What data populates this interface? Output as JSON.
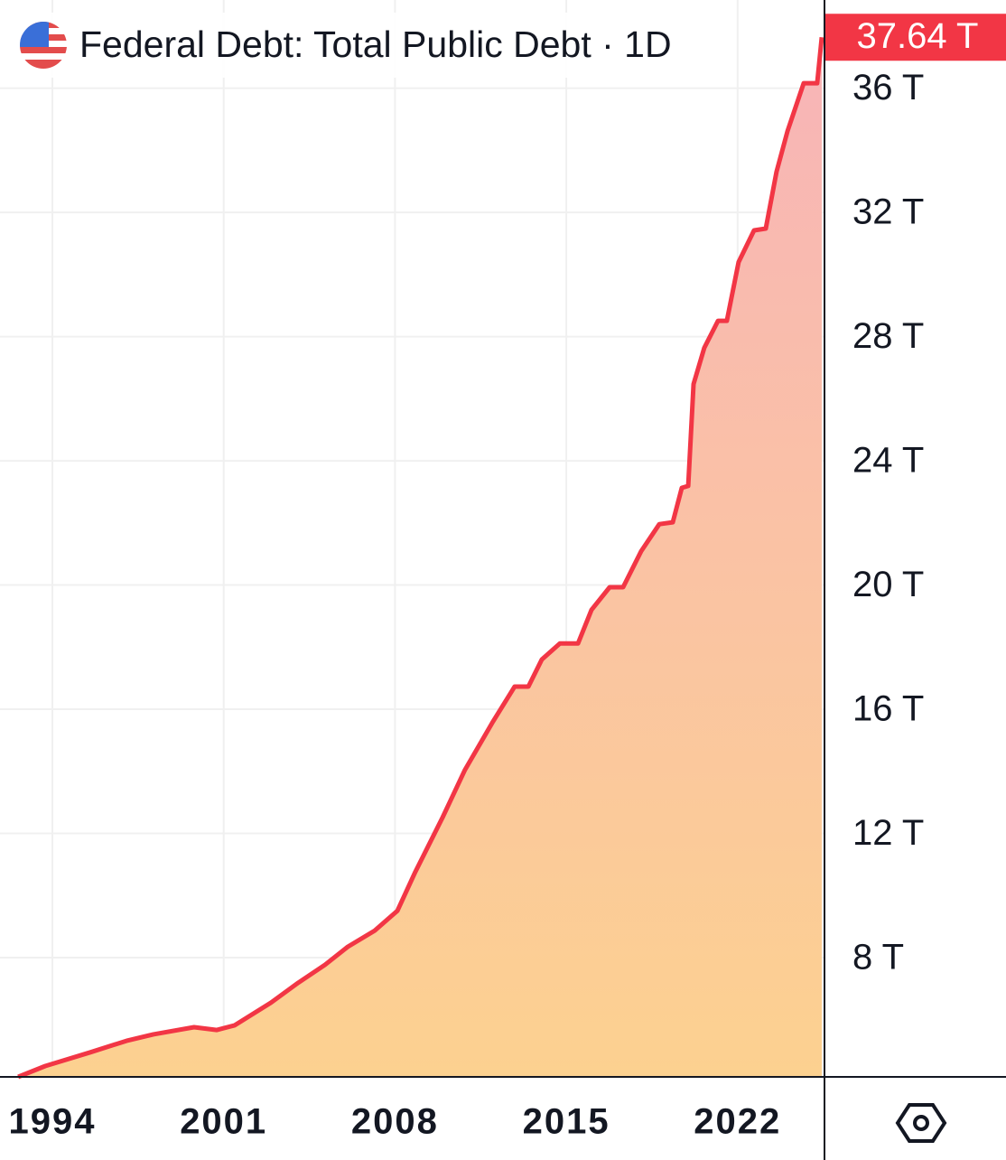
{
  "chart_data": {
    "type": "area",
    "title": "Federal Debt: Total Public Debt · 1D",
    "x": [
      1992.6,
      1993.71,
      1995.55,
      1997.03,
      1998.13,
      1999.79,
      2000.72,
      2001.45,
      2002.93,
      2004.04,
      2005.14,
      2006.07,
      2007.17,
      2008.1,
      2008.83,
      2009.94,
      2010.86,
      2011.97,
      2012.89,
      2013.45,
      2014.0,
      2014.74,
      2015.48,
      2016.03,
      2016.77,
      2017.32,
      2018.06,
      2018.8,
      2019.35,
      2019.72,
      2019.98,
      2020.2,
      2020.64,
      2021.2,
      2021.56,
      2022.04,
      2022.67,
      2023.15,
      2023.59,
      2024.04,
      2024.7,
      2025.25,
      2025.44
    ],
    "series": [
      {
        "name": "Federal Debt: Total Public Debt",
        "color": "#f23645",
        "values": [
          4.16,
          4.51,
          4.95,
          5.32,
          5.53,
          5.76,
          5.67,
          5.82,
          6.55,
          7.19,
          7.77,
          8.35,
          8.87,
          9.51,
          10.76,
          12.51,
          14.05,
          15.56,
          16.73,
          16.73,
          17.6,
          18.12,
          18.12,
          19.2,
          19.93,
          19.93,
          21.09,
          21.96,
          22.02,
          23.13,
          23.19,
          26.47,
          27.64,
          28.51,
          28.51,
          30.4,
          31.42,
          31.48,
          33.31,
          34.62,
          36.16,
          36.16,
          37.64
        ]
      }
    ],
    "current_value": {
      "value": 37.64,
      "label": "37.64 T"
    },
    "xlim": [
      1991.86,
      2025.55
    ],
    "xticks": [
      1994,
      2001,
      2008,
      2015,
      2022
    ],
    "ylim": [
      4.16,
      38.84
    ],
    "yticks": [
      {
        "value": 8,
        "label": "8 T"
      },
      {
        "value": 12,
        "label": "12 T"
      },
      {
        "value": 16,
        "label": "16 T"
      },
      {
        "value": 20,
        "label": "20 T"
      },
      {
        "value": 24,
        "label": "24 T"
      },
      {
        "value": 28,
        "label": "28 T"
      },
      {
        "value": 32,
        "label": "32 T"
      },
      {
        "value": 36,
        "label": "36 T"
      }
    ],
    "grid": true
  }
}
